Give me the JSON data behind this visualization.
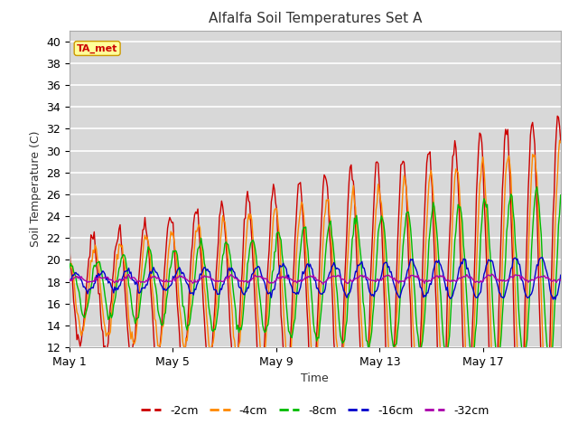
{
  "title": "Alfalfa Soil Temperatures Set A",
  "xlabel": "Time",
  "ylabel": "Soil Temperature (C)",
  "ylim": [
    12,
    41
  ],
  "yticks": [
    12,
    14,
    16,
    18,
    20,
    22,
    24,
    26,
    28,
    30,
    32,
    34,
    36,
    38,
    40
  ],
  "xtick_labels": [
    "May 1",
    "May 5",
    "May 9",
    "May 13",
    "May 17"
  ],
  "xtick_positions": [
    0,
    4,
    8,
    12,
    16
  ],
  "n_days": 19,
  "bg_color": "#d8d8d8",
  "plot_bg": "#d8d8d8",
  "fig_bg": "#ffffff",
  "line_colors": {
    "-2cm": "#cc0000",
    "-4cm": "#ff8800",
    "-8cm": "#00bb00",
    "-16cm": "#0000cc",
    "-32cm": "#aa00aa"
  },
  "annotation_label": "TA_met",
  "annotation_color": "#cc0000",
  "annotation_bg": "#ffff99",
  "annotation_border": "#cc9900"
}
